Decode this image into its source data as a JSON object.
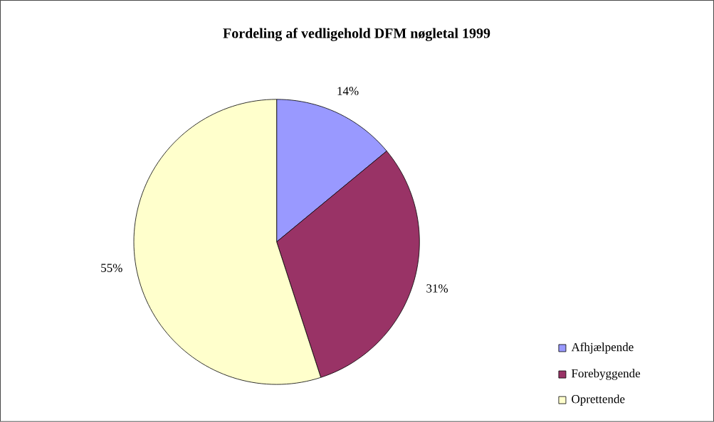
{
  "chart_data": {
    "type": "pie",
    "title": "Fordeling af vedligehold DFM nøgletal 1999",
    "categories": [
      "Afhjælpende",
      "Forebyggende",
      "Oprettende"
    ],
    "values": [
      14,
      31,
      55
    ],
    "colors": [
      "#9999ff",
      "#993366",
      "#ffffcc"
    ],
    "value_labels": [
      "14%",
      "31%",
      "55%"
    ],
    "legend": "bottom right"
  }
}
